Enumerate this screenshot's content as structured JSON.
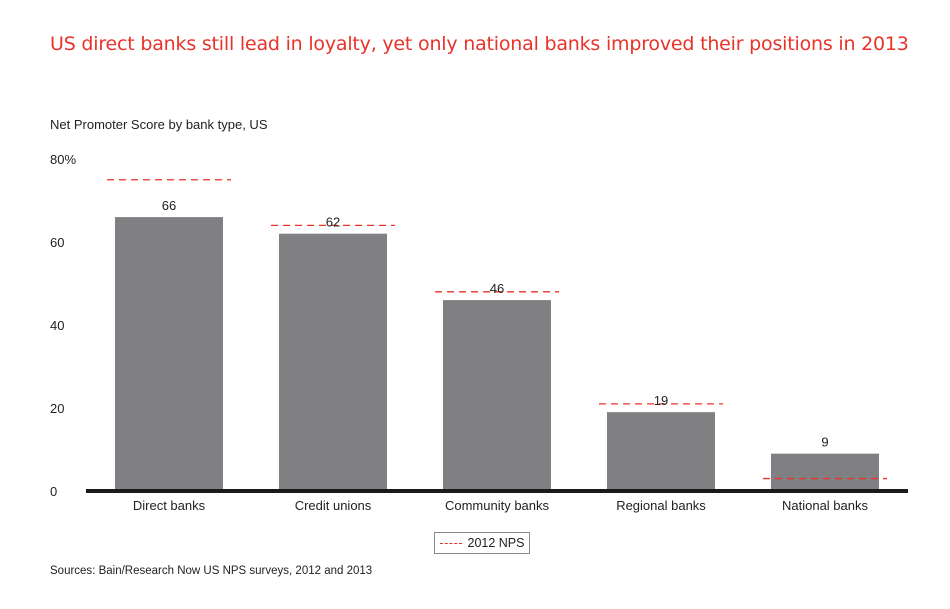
{
  "title": "US direct banks still lead in loyalty, yet only national banks improved their positions in 2013",
  "subtitle": "Net Promoter Score by bank type, US",
  "source": "Sources: Bain/Research Now US NPS surveys, 2012 and 2013",
  "colors": {
    "bar": "#808083",
    "reference": "#e8332a",
    "title": "#e8332a",
    "axis": "#1a1a1a"
  },
  "chart_data": {
    "type": "bar",
    "categories": [
      "Direct banks",
      "Credit unions",
      "Community banks",
      "Regional banks",
      "National banks"
    ],
    "series": [
      {
        "values": [
          66,
          62,
          46,
          19,
          9
        ]
      },
      {
        "name": "2012 NPS",
        "style": "dashed-line",
        "values": [
          75,
          64,
          48,
          21,
          3
        ]
      }
    ],
    "value_labels": [
      "66",
      "62",
      "46",
      "19",
      "9"
    ],
    "yticks": [
      "0",
      "20",
      "40",
      "60",
      "80%"
    ],
    "ytick_values": [
      0,
      20,
      40,
      60,
      80
    ],
    "ylim": [
      0,
      80
    ],
    "xlabel": "",
    "ylabel": "",
    "grid": false,
    "legend": {
      "label": "2012 NPS",
      "position": "bottom-center"
    }
  }
}
